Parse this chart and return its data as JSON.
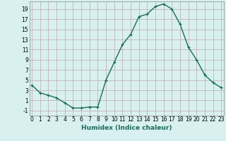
{
  "x": [
    0,
    1,
    2,
    3,
    4,
    5,
    6,
    7,
    8,
    9,
    10,
    11,
    12,
    13,
    14,
    15,
    16,
    17,
    18,
    19,
    20,
    21,
    22,
    23
  ],
  "y": [
    4,
    2.5,
    2,
    1.5,
    0.5,
    -0.5,
    -0.5,
    -0.3,
    -0.3,
    5,
    8.5,
    12,
    14,
    17.5,
    18,
    19.5,
    20,
    19,
    16,
    11.5,
    9,
    6,
    4.5,
    3.5
  ],
  "line_color": "#1a6b5a",
  "marker": "+",
  "bg_color": "#d8f0f0",
  "grid_color": "#c0a8a8",
  "xlabel": "Humidex (Indice chaleur)",
  "yticks": [
    -1,
    1,
    3,
    5,
    7,
    9,
    11,
    13,
    15,
    17,
    19
  ],
  "xticks": [
    0,
    1,
    2,
    3,
    4,
    5,
    6,
    7,
    8,
    9,
    10,
    11,
    12,
    13,
    14,
    15,
    16,
    17,
    18,
    19,
    20,
    21,
    22,
    23
  ],
  "xlim": [
    -0.3,
    23.3
  ],
  "ylim": [
    -2.0,
    20.5
  ],
  "tick_fontsize": 5.5,
  "xlabel_fontsize": 6.5,
  "linewidth": 1.0,
  "markersize": 3.5,
  "markeredgewidth": 0.9
}
